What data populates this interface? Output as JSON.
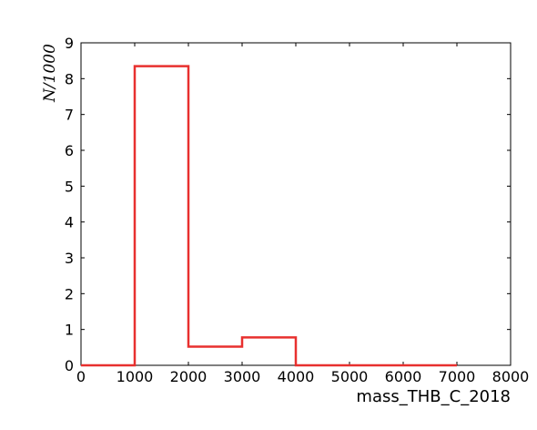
{
  "chart_data": {
    "type": "line",
    "style": "step-histogram",
    "xlabel": "mass_THB_C_2018",
    "ylabel": "N/1000",
    "x_ticks": [
      "0",
      "1000",
      "2000",
      "3000",
      "4000",
      "5000",
      "6000",
      "7000",
      "8000"
    ],
    "y_ticks": [
      "0",
      "1",
      "2",
      "3",
      "4",
      "5",
      "6",
      "7",
      "8",
      "9"
    ],
    "xlim": [
      0,
      8000
    ],
    "ylim": [
      0,
      9
    ],
    "grid": false,
    "legend": "none",
    "series": [
      {
        "color": "#e8302f",
        "bin_edges": [
          0,
          1000,
          2000,
          3000,
          4000,
          5000,
          6000,
          7000
        ],
        "values": [
          0,
          8.35,
          0.52,
          0.78,
          0,
          0,
          0
        ]
      }
    ]
  }
}
